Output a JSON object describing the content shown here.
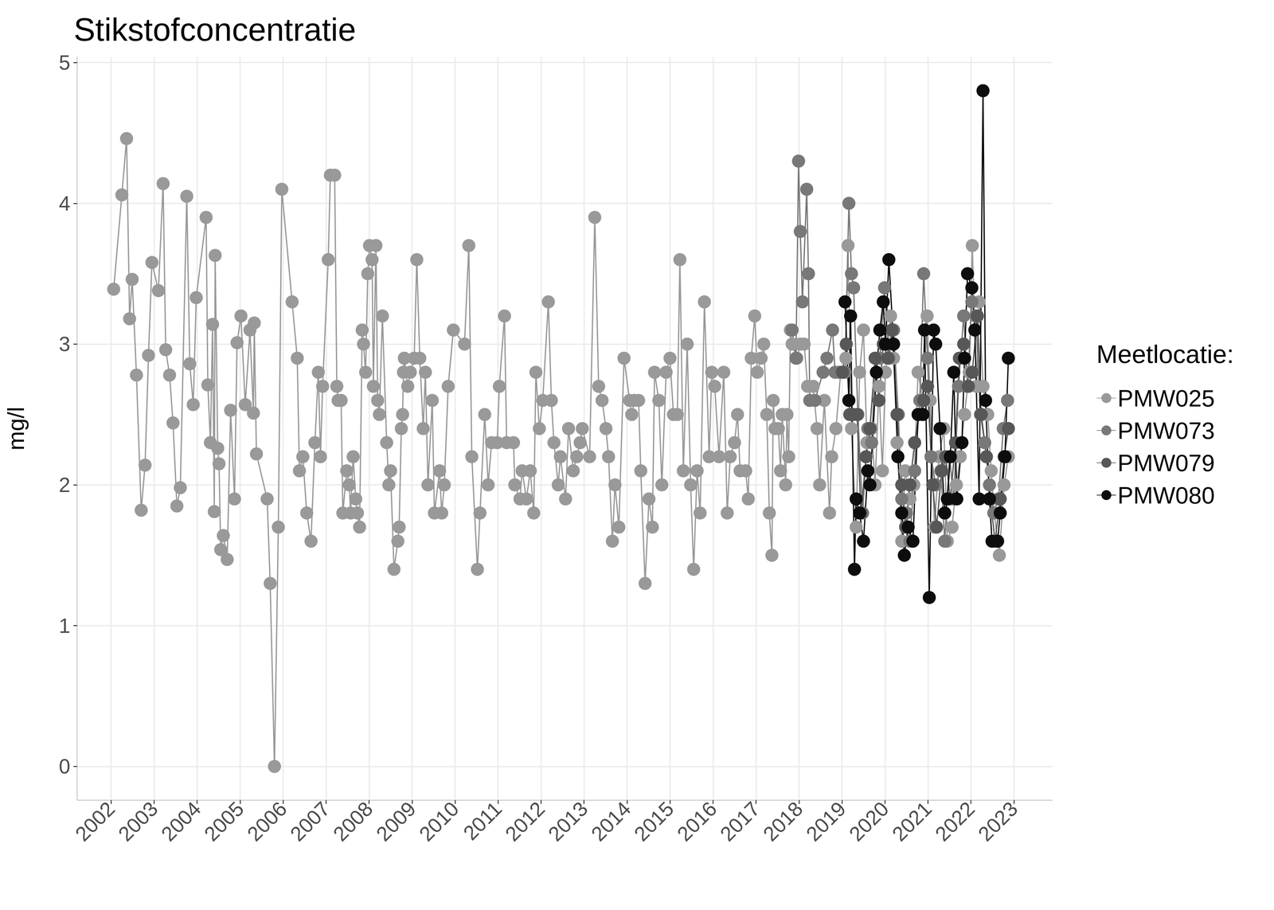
{
  "chart_data": {
    "type": "line",
    "title": "Stikstofconcentratie",
    "y_label": "mg/l",
    "legend_title": "Meetlocatie:",
    "legend": "right",
    "grid": true,
    "marker": "circle",
    "line_style": "solid",
    "xlim": [
      2001.21,
      2023.89
    ],
    "xticks": [
      2002,
      2003,
      2004,
      2005,
      2006,
      2007,
      2008,
      2009,
      2010,
      2011,
      2012,
      2013,
      2014,
      2015,
      2016,
      2017,
      2018,
      2019,
      2020,
      2021,
      2022,
      2023
    ],
    "ylim": [
      -0.24,
      5.04
    ],
    "yticks": [
      0,
      1,
      2,
      3,
      4,
      5
    ],
    "series": [
      {
        "name": "PMW025",
        "color": "#999999",
        "x": [
          2002.06,
          2002.25,
          2002.36,
          2002.43,
          2002.49,
          2002.59,
          2002.7,
          2002.79,
          2002.87,
          2002.95,
          2003.1,
          2003.21,
          2003.27,
          2003.36,
          2003.44,
          2003.53,
          2003.61,
          2003.76,
          2003.83,
          2003.91,
          2003.98,
          2004.21,
          2004.25,
          2004.31,
          2004.36,
          2004.4,
          2004.42,
          2004.48,
          2004.51,
          2004.55,
          2004.61,
          2004.7,
          2004.78,
          2004.87,
          2004.93,
          2005.02,
          2005.12,
          2005.23,
          2005.31,
          2005.33,
          2005.38,
          2005.63,
          2005.7,
          2005.8,
          2005.89,
          2005.97,
          2006.21,
          2006.33,
          2006.38,
          2006.46,
          2006.55,
          2006.65,
          2006.74,
          2006.82,
          2006.87,
          2006.92,
          2007.05,
          2007.1,
          2007.2,
          2007.25,
          2007.28,
          2007.35,
          2007.39,
          2007.48,
          2007.54,
          2007.57,
          2007.63,
          2007.69,
          2007.73,
          2007.78,
          2007.84,
          2007.87,
          2007.92,
          2007.97,
          2008.01,
          2008.07,
          2008.1,
          2008.16,
          2008.2,
          2008.24,
          2008.31,
          2008.41,
          2008.46,
          2008.5,
          2008.58,
          2008.67,
          2008.7,
          2008.75,
          2008.78,
          2008.8,
          2008.82,
          2008.9,
          2008.96,
          2009.05,
          2009.11,
          2009.18,
          2009.26,
          2009.31,
          2009.37,
          2009.47,
          2009.52,
          2009.64,
          2009.69,
          2009.75,
          2009.84,
          2009.96,
          2010.22,
          2010.32,
          2010.39,
          2010.52,
          2010.58,
          2010.69,
          2010.77,
          2010.85,
          2010.98,
          2011.03,
          2011.15,
          2011.2,
          2011.36,
          2011.39,
          2011.51,
          2011.56,
          2011.66,
          2011.75,
          2011.83,
          2011.88,
          2011.96,
          2012.04,
          2012.17,
          2012.24,
          2012.3,
          2012.4,
          2012.45,
          2012.57,
          2012.64,
          2012.75,
          2012.83,
          2012.91,
          2012.96,
          2013.13,
          2013.25,
          2013.34,
          2013.42,
          2013.51,
          2013.57,
          2013.66,
          2013.72,
          2013.81,
          2013.93,
          2014.06,
          2014.11,
          2014.17,
          2014.27,
          2014.32,
          2014.42,
          2014.51,
          2014.59,
          2014.64,
          2014.74,
          2014.81,
          2014.91,
          2015.0,
          2015.08,
          2015.17,
          2015.23,
          2015.31,
          2015.4,
          2015.48,
          2015.55,
          2015.63,
          2015.7,
          2015.8,
          2015.91,
          2015.97,
          2016.04,
          2016.14,
          2016.25,
          2016.33,
          2016.4,
          2016.5,
          2016.57,
          2016.63,
          2016.76,
          2016.82,
          2016.89,
          2016.97,
          2017.03,
          2017.12,
          2017.18,
          2017.25,
          2017.31,
          2017.37,
          2017.4,
          2017.44,
          2017.52,
          2017.57,
          2017.61,
          2017.69,
          2017.72,
          2017.76,
          2017.8,
          2017.84,
          2017.95,
          2018.03,
          2018.12,
          2018.2,
          2018.33,
          2018.42,
          2018.48,
          2018.59,
          2018.71,
          2018.76,
          2018.86,
          2018.97,
          2019.09,
          2019.14,
          2019.22,
          2019.33,
          2019.41,
          2019.5,
          2019.58,
          2019.69,
          2019.77,
          2019.86,
          2019.94,
          2020.01,
          2020.13,
          2020.2,
          2020.28,
          2020.39,
          2020.47,
          2020.58,
          2020.67,
          2020.77,
          2020.88,
          2020.98,
          2021.05,
          2021.15,
          2021.26,
          2021.37,
          2021.45,
          2021.56,
          2021.66,
          2021.75,
          2021.85,
          2021.96,
          2022.03,
          2022.13,
          2022.19,
          2022.28,
          2022.39,
          2022.47,
          2022.54,
          2022.66,
          2022.77,
          2022.87
        ],
        "values": [
          3.39,
          4.06,
          4.46,
          3.18,
          3.46,
          2.78,
          1.82,
          2.14,
          2.92,
          3.58,
          3.38,
          4.14,
          2.96,
          2.78,
          2.44,
          1.85,
          1.98,
          4.05,
          2.86,
          2.57,
          3.33,
          3.9,
          2.71,
          2.3,
          3.14,
          1.81,
          3.63,
          2.26,
          2.15,
          1.54,
          1.64,
          1.47,
          2.53,
          1.9,
          3.01,
          3.2,
          2.57,
          3.1,
          2.51,
          3.15,
          2.22,
          1.9,
          1.3,
          0,
          1.7,
          4.1,
          3.3,
          2.9,
          2.1,
          2.2,
          1.8,
          1.6,
          2.3,
          2.8,
          2.2,
          2.7,
          3.6,
          4.2,
          4.2,
          2.7,
          2.6,
          2.6,
          1.8,
          2.1,
          2.0,
          1.8,
          2.2,
          1.9,
          1.8,
          1.7,
          3.1,
          3.0,
          2.8,
          3.5,
          3.7,
          3.6,
          2.7,
          3.7,
          2.6,
          2.5,
          3.2,
          2.3,
          2.0,
          2.1,
          1.4,
          1.6,
          1.7,
          2.4,
          2.5,
          2.8,
          2.9,
          2.7,
          2.8,
          2.9,
          3.6,
          2.9,
          2.4,
          2.8,
          2.0,
          2.6,
          1.8,
          2.1,
          1.8,
          2.0,
          2.7,
          3.1,
          3.0,
          3.7,
          2.2,
          1.4,
          1.8,
          2.5,
          2.0,
          2.3,
          2.3,
          2.7,
          3.2,
          2.3,
          2.3,
          2.0,
          1.9,
          2.1,
          1.9,
          2.1,
          1.8,
          2.8,
          2.4,
          2.6,
          3.3,
          2.6,
          2.3,
          2.0,
          2.2,
          1.9,
          2.4,
          2.1,
          2.2,
          2.3,
          2.4,
          2.2,
          3.9,
          2.7,
          2.6,
          2.4,
          2.2,
          1.6,
          2.0,
          1.7,
          2.9,
          2.6,
          2.5,
          2.6,
          2.6,
          2.1,
          1.3,
          1.9,
          1.7,
          2.8,
          2.6,
          2.0,
          2.8,
          2.9,
          2.5,
          2.5,
          3.6,
          2.1,
          3.0,
          2.0,
          1.4,
          2.1,
          1.8,
          3.3,
          2.2,
          2.8,
          2.7,
          2.2,
          2.8,
          1.8,
          2.2,
          2.3,
          2.5,
          2.1,
          2.1,
          1.9,
          2.9,
          3.2,
          2.8,
          2.9,
          3.0,
          2.5,
          1.8,
          1.5,
          2.6,
          2.4,
          2.4,
          2.1,
          2.5,
          2.0,
          2.5,
          2.2,
          3.1,
          3.0,
          2.9,
          3.0,
          3.0,
          2.7,
          2.7,
          2.4,
          2.0,
          2.6,
          1.8,
          2.2,
          2.4,
          2.8,
          2.9,
          3.7,
          2.4,
          1.7,
          2.8,
          3.1,
          2.3,
          2.4,
          2.0,
          2.7,
          2.1,
          2.8,
          3.2,
          2.9,
          2.3,
          1.6,
          2.1,
          1.9,
          2.0,
          2.8,
          2.6,
          3.2,
          2.6,
          1.7,
          2.2,
          2.4,
          1.6,
          1.7,
          2.0,
          2.2,
          2.5,
          2.8,
          3.7,
          2.7,
          3.3,
          2.7,
          2.5,
          2.1,
          1.8,
          1.5,
          2.0,
          2.2
        ]
      },
      {
        "name": "PMW073",
        "color": "#787878",
        "x": [
          2017.84,
          2017.93,
          2017.99,
          2018.03,
          2018.08,
          2018.18,
          2018.22,
          2018.25,
          2018.37,
          2018.56,
          2018.65,
          2018.78,
          2018.84,
          2018.93,
          2019.07,
          2019.16,
          2019.22,
          2019.27,
          2019.37,
          2019.48,
          2019.6,
          2019.69,
          2019.78,
          2019.88,
          2019.99,
          2020.09,
          2020.2,
          2020.31,
          2020.39,
          2020.5,
          2020.58,
          2020.69,
          2020.81,
          2020.9,
          2020.99,
          2021.07,
          2021.18,
          2021.3,
          2021.39,
          2021.5,
          2021.6,
          2021.71,
          2021.83,
          2021.92,
          2022.02,
          2022.11,
          2022.22,
          2022.32,
          2022.43,
          2022.53,
          2022.64,
          2022.75,
          2022.85
        ],
        "values": [
          3.1,
          2.9,
          4.3,
          3.8,
          3.3,
          4.1,
          3.5,
          2.6,
          2.6,
          2.8,
          2.9,
          3.1,
          2.8,
          2.8,
          2.8,
          4.0,
          3.5,
          3.4,
          2.5,
          1.8,
          2.4,
          2.3,
          2.9,
          2.9,
          3.4,
          2.9,
          3.1,
          2.5,
          1.9,
          1.8,
          1.6,
          2.1,
          2.6,
          3.5,
          2.9,
          2.2,
          2.0,
          2.1,
          1.6,
          2.2,
          1.9,
          2.7,
          3.2,
          2.7,
          3.3,
          3.2,
          2.5,
          2.3,
          2.0,
          1.8,
          1.9,
          2.4,
          2.6
        ]
      },
      {
        "name": "PMW079",
        "color": "#575757",
        "x": [
          2019.01,
          2019.1,
          2019.18,
          2019.26,
          2019.35,
          2019.44,
          2019.56,
          2019.65,
          2019.77,
          2019.86,
          2019.96,
          2020.07,
          2020.16,
          2020.28,
          2020.39,
          2020.48,
          2020.58,
          2020.69,
          2020.79,
          2020.9,
          2020.99,
          2021.11,
          2021.2,
          2021.32,
          2021.41,
          2021.52,
          2021.64,
          2021.73,
          2021.83,
          2021.94,
          2022.03,
          2022.15,
          2022.24,
          2022.36,
          2022.45,
          2022.56,
          2022.68,
          2022.77,
          2022.87
        ],
        "values": [
          2.8,
          3.0,
          2.5,
          2.5,
          2.5,
          1.8,
          2.2,
          2.4,
          2.9,
          2.6,
          3.0,
          2.9,
          3.1,
          2.5,
          2.0,
          1.7,
          2.0,
          2.3,
          2.5,
          2.6,
          2.7,
          2.0,
          1.7,
          2.1,
          2.2,
          1.9,
          2.3,
          2.9,
          3.0,
          2.7,
          2.8,
          3.2,
          2.5,
          2.2,
          1.9,
          1.6,
          1.9,
          2.2,
          2.4
        ]
      },
      {
        "name": "PMW080",
        "color": "#0d0d0d",
        "x": [
          2019.07,
          2019.16,
          2019.2,
          2019.29,
          2019.33,
          2019.41,
          2019.5,
          2019.6,
          2019.65,
          2019.8,
          2019.88,
          2019.96,
          2020.01,
          2020.09,
          2020.2,
          2020.3,
          2020.39,
          2020.45,
          2020.54,
          2020.65,
          2020.77,
          2020.88,
          2020.92,
          2021.03,
          2021.13,
          2021.18,
          2021.28,
          2021.39,
          2021.45,
          2021.52,
          2021.6,
          2021.67,
          2021.79,
          2021.85,
          2021.92,
          2022.02,
          2022.09,
          2022.19,
          2022.28,
          2022.34,
          2022.43,
          2022.49,
          2022.62,
          2022.68,
          2022.79,
          2022.87
        ],
        "values": [
          3.3,
          2.6,
          3.2,
          1.4,
          1.9,
          1.8,
          1.6,
          2.1,
          2.0,
          2.8,
          3.1,
          3.3,
          3.0,
          3.6,
          3.0,
          2.2,
          1.8,
          1.5,
          1.7,
          1.6,
          2.5,
          2.5,
          3.1,
          1.2,
          3.1,
          3.0,
          2.4,
          1.8,
          1.9,
          2.2,
          2.8,
          1.9,
          2.3,
          2.9,
          3.5,
          3.4,
          3.1,
          1.9,
          4.8,
          2.6,
          1.9,
          1.6,
          1.6,
          1.8,
          2.2,
          2.9
        ]
      }
    ]
  }
}
